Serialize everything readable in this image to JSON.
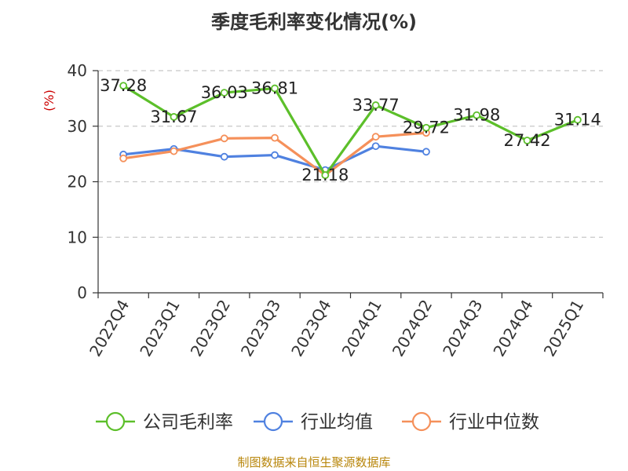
{
  "chart_data": {
    "type": "line",
    "title": "季度毛利率变化情况(%)",
    "ylabel": "(%)",
    "xlabel": "",
    "ylim": [
      0,
      40
    ],
    "yticks": [
      0,
      10,
      20,
      30,
      40
    ],
    "grid": true,
    "legend_position": "bottom",
    "categories": [
      "2022Q4",
      "2023Q1",
      "2023Q2",
      "2023Q3",
      "2023Q4",
      "2024Q1",
      "2024Q2",
      "2024Q3",
      "2024Q4",
      "2025Q1"
    ],
    "series": [
      {
        "name": "公司毛利率",
        "color": "#5cbf2a",
        "values": [
          37.28,
          31.67,
          36.03,
          36.81,
          21.18,
          33.77,
          29.72,
          31.98,
          27.42,
          31.14
        ],
        "labels": [
          "37.28",
          "31.67",
          "36.03",
          "36.81",
          "21.18",
          "33.77",
          "29.72",
          "31.98",
          "27.42",
          "31.14"
        ]
      },
      {
        "name": "行业均值",
        "color": "#4f81e0",
        "values": [
          24.9,
          25.9,
          24.5,
          24.8,
          22.1,
          26.4,
          25.4,
          null,
          null,
          null
        ]
      },
      {
        "name": "行业中位数",
        "color": "#f5905a",
        "values": [
          24.2,
          25.5,
          27.8,
          27.9,
          21.2,
          28.1,
          28.8,
          null,
          null,
          null
        ]
      }
    ]
  },
  "source": "制图数据来自恒生聚源数据库"
}
